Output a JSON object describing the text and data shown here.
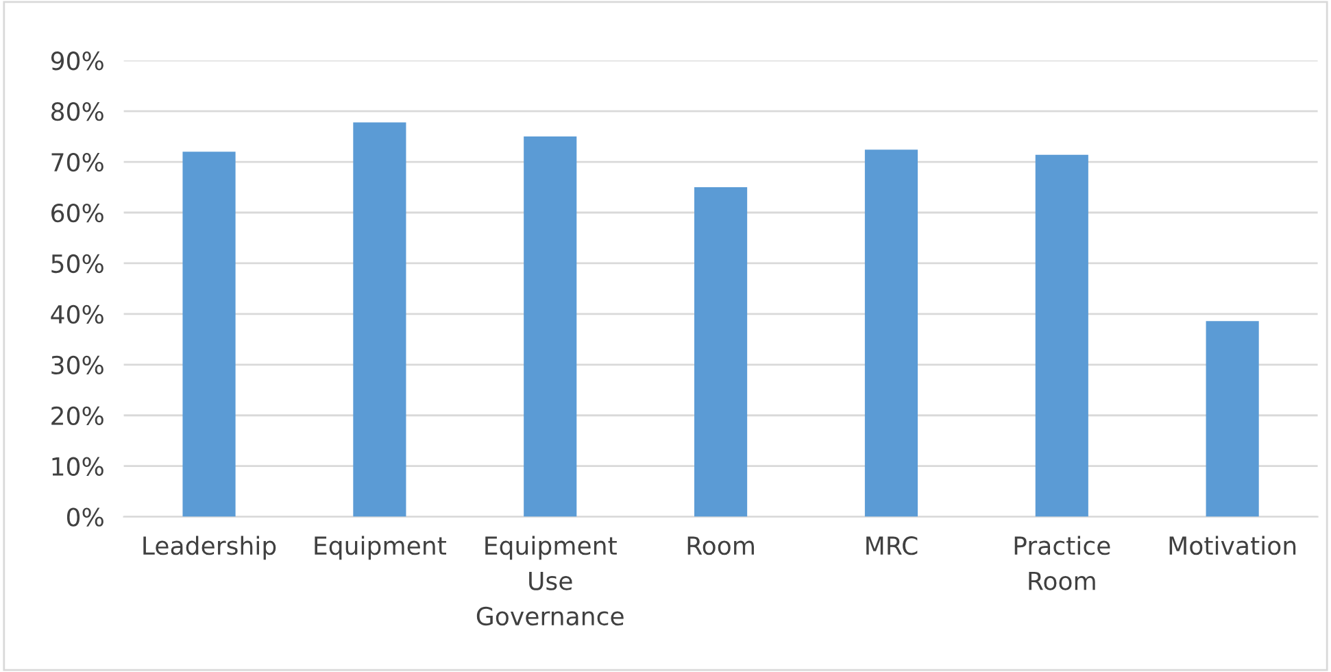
{
  "chart_data": {
    "type": "bar",
    "categories": [
      "Leadership",
      "Equipment",
      "Equipment Use Governance",
      "Room",
      "MRC",
      "Practice Room",
      "Motivation"
    ],
    "values": [
      72,
      77.8,
      75,
      65,
      72.4,
      71.4,
      38.6
    ],
    "color": "#5b9bd5",
    "ylim": [
      0,
      90
    ],
    "yticks": [
      {
        "value": 0,
        "label": "0%"
      },
      {
        "value": 10,
        "label": "10%"
      },
      {
        "value": 20,
        "label": "20%"
      },
      {
        "value": 30,
        "label": "30%"
      },
      {
        "value": 40,
        "label": "40%"
      },
      {
        "value": 50,
        "label": "50%"
      },
      {
        "value": 60,
        "label": "60%"
      },
      {
        "value": 70,
        "label": "70%"
      },
      {
        "value": 80,
        "label": "80%"
      },
      {
        "value": 90,
        "label": "90%"
      }
    ],
    "grid": "y"
  }
}
